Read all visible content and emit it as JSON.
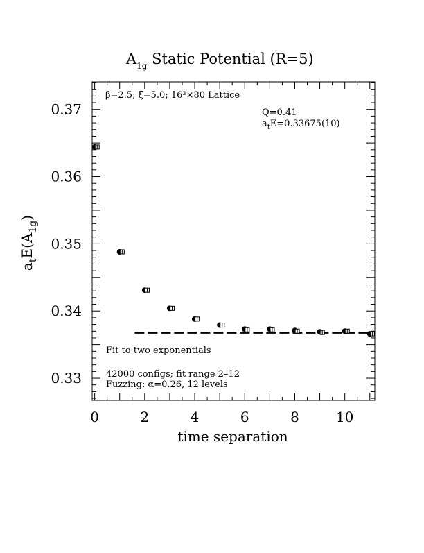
{
  "chart_data": {
    "type": "scatter",
    "title": {
      "main": "A",
      "sub": "1g",
      "rest": " Static Potential (R=5)"
    },
    "xlabel": "time separation",
    "ylabel": {
      "a": "a",
      "t": "t",
      "E": "E(A",
      "sub": "1g",
      "close": ")"
    },
    "xlim": [
      -0.1,
      11.2
    ],
    "ylim": [
      0.3267,
      0.3741
    ],
    "x_ticks": [
      0,
      2,
      4,
      6,
      8,
      10
    ],
    "y_ticks": [
      0.33,
      0.34,
      0.35,
      0.36,
      0.37
    ],
    "x_tick_labels": [
      "0",
      "2",
      "4",
      "6",
      "8",
      "10"
    ],
    "y_tick_labels": [
      "0.33",
      "0.34",
      "0.35",
      "0.36",
      "0.37"
    ],
    "series": [
      {
        "marker": "filled-circle",
        "x": [
          0,
          1,
          2,
          3,
          4,
          5,
          6,
          7,
          8,
          9,
          10,
          11
        ],
        "y": [
          0.3644,
          0.3488,
          0.3431,
          0.3404,
          0.3388,
          0.3379,
          0.3373,
          0.3373,
          0.3371,
          0.3369,
          0.337,
          0.3366
        ]
      },
      {
        "marker": "open-square-with-errorbar",
        "x": [
          0.1,
          1.1,
          2.1,
          3.1,
          4.1,
          5.1,
          6.1,
          7.1,
          8.1,
          9.1,
          10.1,
          11.1
        ],
        "y": [
          0.3644,
          0.3488,
          0.3431,
          0.3404,
          0.3388,
          0.3379,
          0.3372,
          0.3372,
          0.337,
          0.3368,
          0.337,
          0.3366
        ]
      }
    ],
    "fit_line": {
      "style": "dashed",
      "x_start": 1.6,
      "x_end": 11.2,
      "y": 0.33675
    },
    "annotations": {
      "lattice": "β=2.5; ξ=5.0; 16³×80 Lattice",
      "q_value": "Q=0.41",
      "energy": {
        "a": "a",
        "t": "t",
        "rest": "E=0.33675(10)"
      },
      "fit_desc": "Fit to two exponentials",
      "configs": "42000 configs; fit range 2–12",
      "fuzzing": "Fuzzing: α=0.26, 12 levels"
    },
    "grid": false,
    "legend": "none"
  }
}
